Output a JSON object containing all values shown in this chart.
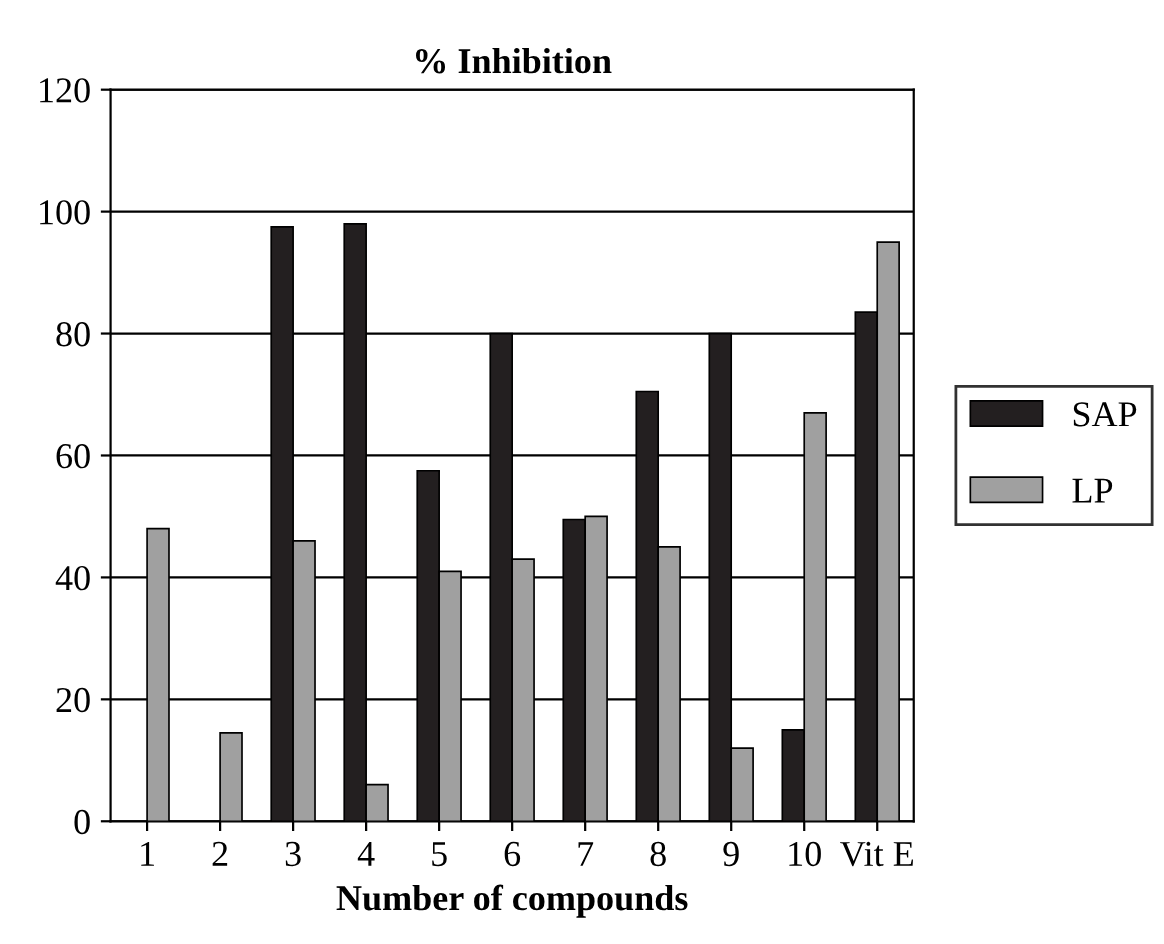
{
  "chart_data": {
    "type": "bar",
    "title": "% Inhibition",
    "xlabel": "Number of compounds",
    "categories": [
      "1",
      "2",
      "3",
      "4",
      "5",
      "6",
      "7",
      "8",
      "9",
      "10",
      "Vit E"
    ],
    "series": [
      {
        "name": "SAP",
        "color": "#231f20",
        "values": [
          null,
          null,
          97.5,
          98,
          57.5,
          80,
          49.5,
          70.5,
          80,
          15,
          83.5
        ]
      },
      {
        "name": "LP",
        "color": "#a0a0a0",
        "values": [
          48,
          14.5,
          46,
          6,
          41,
          43,
          50,
          45,
          12,
          67,
          95
        ]
      }
    ],
    "ylim": [
      0,
      120
    ],
    "yticks": [
      0,
      20,
      40,
      60,
      80,
      100,
      120
    ],
    "grid": "y",
    "legend": "right"
  }
}
